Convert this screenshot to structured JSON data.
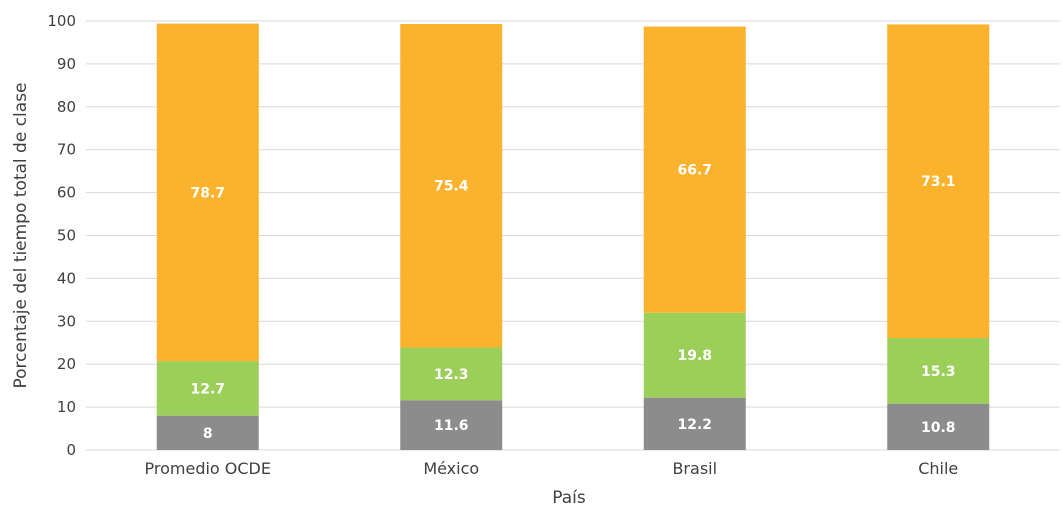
{
  "chart_data": {
    "type": "bar",
    "stacked": true,
    "categories": [
      "Promedio OCDE",
      "México",
      "Brasil",
      "Chile"
    ],
    "series": [
      {
        "values": [
          8,
          11.6,
          12.2,
          10.8
        ],
        "color": "#8c8c8c"
      },
      {
        "values": [
          12.7,
          12.3,
          19.8,
          15.3
        ],
        "color": "#9ccf5a"
      },
      {
        "values": [
          78.7,
          75.4,
          66.7,
          73.1
        ],
        "color": "#fbb22d"
      }
    ],
    "title": "",
    "xlabel": "País",
    "ylabel": "Porcentaje del tiempo total de clase",
    "ylim": [
      0,
      100
    ],
    "yticks": [
      0,
      10,
      20,
      30,
      40,
      50,
      60,
      70,
      80,
      90,
      100
    ],
    "grid": true,
    "data_labels": true
  }
}
